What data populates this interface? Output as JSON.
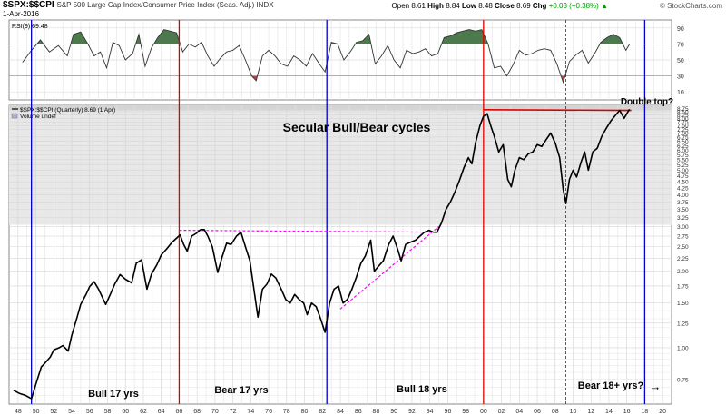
{
  "header": {
    "ticker": "$SPX:$$CPI",
    "description": "S&P 500 Large Cap Index/Consumer Price Index (Seas. Adj.) INDX",
    "date": "1-Apr-2016",
    "open_label": "Open",
    "open": "8.61",
    "high_label": "High",
    "high": "8.84",
    "low_label": "Low",
    "low": "8.48",
    "close_label": "Close",
    "close": "8.69",
    "chg_label": "Chg",
    "chg": "+0.03 (+0.38%)",
    "up_arrow": "▲",
    "brand": "© StockCharts.com"
  },
  "rsi_panel": {
    "legend": "RSI(9) 69.48",
    "ticks": [
      "90",
      "70",
      "50",
      "30",
      "10"
    ]
  },
  "price_panel": {
    "legend_line1": "$SPX:$$CPI (Quarterly) 8.69 (1 Apr)",
    "legend_line2": "Volume undef",
    "main_title": "Secular Bull/Bear cycles",
    "annotation_double_top": "Double top?"
  },
  "cycles": [
    {
      "label": "Bull 17 yrs",
      "start": 1949.5,
      "end": 1966,
      "color": "#0000cc"
    },
    {
      "label": "Bear 17 yrs",
      "start": 1966,
      "end": 1982.5,
      "color": "#dd0000"
    },
    {
      "label": "Bull 18 yrs",
      "start": 1982.5,
      "end": 2000,
      "color": "#0000cc"
    },
    {
      "label": "Bear 18+ yrs?",
      "start": 2000,
      "end": 2018,
      "color": "#dd0000"
    }
  ],
  "bear_arrow": "→",
  "chart_data": {
    "type": "line",
    "scale": "log",
    "ylim": [
      0.6,
      9.0
    ],
    "xlim": [
      1947,
      2021
    ],
    "x_ticks": [
      "48",
      "50",
      "52",
      "54",
      "56",
      "58",
      "60",
      "62",
      "64",
      "66",
      "68",
      "70",
      "72",
      "74",
      "76",
      "78",
      "80",
      "82",
      "84",
      "86",
      "88",
      "90",
      "92",
      "94",
      "96",
      "98",
      "00",
      "02",
      "04",
      "06",
      "08",
      "10",
      "12",
      "14",
      "16",
      "18",
      "20"
    ],
    "y_ticks": [
      "8.75",
      "8.50",
      "8.25",
      "8.00",
      "7.75",
      "7.50",
      "7.25",
      "7.00",
      "6.75",
      "6.50",
      "6.25",
      "6.00",
      "5.75",
      "5.50",
      "5.25",
      "5.00",
      "4.75",
      "4.50",
      "4.25",
      "4.00",
      "3.75",
      "3.50",
      "3.25",
      "3.00",
      "2.75",
      "2.50",
      "2.25",
      "2.00",
      "1.75",
      "1.50",
      "1.25",
      "1.00",
      "0.75"
    ],
    "series": [
      {
        "values": [
          [
            1947.5,
            0.68
          ],
          [
            1948.2,
            0.66
          ],
          [
            1948.8,
            0.65
          ],
          [
            1949.5,
            0.63
          ],
          [
            1950,
            0.72
          ],
          [
            1950.6,
            0.84
          ],
          [
            1951,
            0.87
          ],
          [
            1951.6,
            0.92
          ],
          [
            1952,
            0.98
          ],
          [
            1952.6,
            1.0
          ],
          [
            1953,
            1.02
          ],
          [
            1953.6,
            0.97
          ],
          [
            1954,
            1.12
          ],
          [
            1954.6,
            1.32
          ],
          [
            1955,
            1.48
          ],
          [
            1955.6,
            1.62
          ],
          [
            1956,
            1.74
          ],
          [
            1956.5,
            1.82
          ],
          [
            1957,
            1.7
          ],
          [
            1957.8,
            1.48
          ],
          [
            1958.3,
            1.62
          ],
          [
            1958.8,
            1.78
          ],
          [
            1959.4,
            1.94
          ],
          [
            1960,
            1.86
          ],
          [
            1960.7,
            1.8
          ],
          [
            1961.2,
            2.15
          ],
          [
            1961.8,
            2.22
          ],
          [
            1962.4,
            1.7
          ],
          [
            1962.9,
            1.95
          ],
          [
            1963.5,
            2.12
          ],
          [
            1964,
            2.32
          ],
          [
            1964.6,
            2.45
          ],
          [
            1965.2,
            2.6
          ],
          [
            1965.8,
            2.72
          ],
          [
            1966.1,
            2.78
          ],
          [
            1966.5,
            2.55
          ],
          [
            1966.9,
            2.4
          ],
          [
            1967.4,
            2.75
          ],
          [
            1967.9,
            2.82
          ],
          [
            1968.4,
            2.92
          ],
          [
            1968.8,
            2.92
          ],
          [
            1969.2,
            2.75
          ],
          [
            1969.7,
            2.5
          ],
          [
            1970.3,
            1.98
          ],
          [
            1970.8,
            2.28
          ],
          [
            1971.3,
            2.58
          ],
          [
            1971.8,
            2.55
          ],
          [
            1972.4,
            2.75
          ],
          [
            1972.9,
            2.85
          ],
          [
            1973.4,
            2.5
          ],
          [
            1973.9,
            2.2
          ],
          [
            1974.4,
            1.65
          ],
          [
            1974.8,
            1.32
          ],
          [
            1975.3,
            1.7
          ],
          [
            1975.8,
            1.78
          ],
          [
            1976.3,
            1.95
          ],
          [
            1976.8,
            1.88
          ],
          [
            1977.4,
            1.7
          ],
          [
            1977.9,
            1.55
          ],
          [
            1978.4,
            1.5
          ],
          [
            1978.9,
            1.62
          ],
          [
            1979.4,
            1.55
          ],
          [
            1979.9,
            1.5
          ],
          [
            1980.3,
            1.35
          ],
          [
            1980.8,
            1.5
          ],
          [
            1981.3,
            1.45
          ],
          [
            1981.8,
            1.3
          ],
          [
            1982.3,
            1.15
          ],
          [
            1982.8,
            1.5
          ],
          [
            1983.3,
            1.7
          ],
          [
            1983.8,
            1.75
          ],
          [
            1984.3,
            1.5
          ],
          [
            1984.8,
            1.55
          ],
          [
            1985.3,
            1.7
          ],
          [
            1985.8,
            1.9
          ],
          [
            1986.3,
            2.15
          ],
          [
            1986.8,
            2.3
          ],
          [
            1987.4,
            2.65
          ],
          [
            1987.8,
            2.0
          ],
          [
            1988.3,
            2.1
          ],
          [
            1988.8,
            2.2
          ],
          [
            1989.4,
            2.55
          ],
          [
            1989.9,
            2.75
          ],
          [
            1990.4,
            2.45
          ],
          [
            1990.8,
            2.2
          ],
          [
            1991.3,
            2.55
          ],
          [
            1991.8,
            2.6
          ],
          [
            1992.4,
            2.65
          ],
          [
            1992.9,
            2.75
          ],
          [
            1993.4,
            2.85
          ],
          [
            1993.9,
            2.9
          ],
          [
            1994.4,
            2.85
          ],
          [
            1994.8,
            2.85
          ],
          [
            1995.3,
            3.1
          ],
          [
            1995.8,
            3.5
          ],
          [
            1996.3,
            3.75
          ],
          [
            1996.8,
            4.1
          ],
          [
            1997.3,
            4.55
          ],
          [
            1997.8,
            5.1
          ],
          [
            1998.3,
            5.6
          ],
          [
            1998.7,
            5.3
          ],
          [
            1999.1,
            6.4
          ],
          [
            1999.6,
            7.5
          ],
          [
            2000,
            8.15
          ],
          [
            2000.4,
            8.35
          ],
          [
            2000.8,
            7.5
          ],
          [
            2001.2,
            6.8
          ],
          [
            2001.7,
            5.9
          ],
          [
            2002.2,
            6.3
          ],
          [
            2002.7,
            4.6
          ],
          [
            2003.1,
            4.3
          ],
          [
            2003.5,
            5.0
          ],
          [
            2004,
            5.6
          ],
          [
            2004.5,
            5.5
          ],
          [
            2005,
            5.8
          ],
          [
            2005.5,
            5.9
          ],
          [
            2006,
            6.3
          ],
          [
            2006.5,
            6.2
          ],
          [
            2007,
            6.6
          ],
          [
            2007.5,
            7.0
          ],
          [
            2008,
            6.4
          ],
          [
            2008.5,
            5.6
          ],
          [
            2008.9,
            4.2
          ],
          [
            2009.2,
            3.7
          ],
          [
            2009.6,
            4.6
          ],
          [
            2010,
            5.0
          ],
          [
            2010.4,
            4.7
          ],
          [
            2010.9,
            5.4
          ],
          [
            2011.3,
            5.9
          ],
          [
            2011.7,
            5.0
          ],
          [
            2012.2,
            5.9
          ],
          [
            2012.7,
            6.1
          ],
          [
            2013.2,
            6.8
          ],
          [
            2013.7,
            7.3
          ],
          [
            2014.2,
            7.8
          ],
          [
            2014.7,
            8.2
          ],
          [
            2015.2,
            8.6
          ],
          [
            2015.7,
            8.0
          ],
          [
            2016,
            8.35
          ],
          [
            2016.3,
            8.69
          ]
        ]
      }
    ],
    "resistance_line": {
      "x": [
        2000,
        2016.5
      ],
      "y": [
        8.65,
        8.6
      ]
    },
    "magenta_lines": [
      {
        "x": [
          1966,
          1995
        ],
        "y": [
          2.9,
          2.85
        ]
      },
      {
        "x": [
          1984,
          1995
        ],
        "y": [
          1.42,
          3.0
        ]
      }
    ],
    "rsi": {
      "ylim": [
        0,
        100
      ],
      "values": [
        [
          1948.5,
          47
        ],
        [
          1949.5,
          62
        ],
        [
          1950.5,
          75
        ],
        [
          1951.5,
          60
        ],
        [
          1952.5,
          68
        ],
        [
          1953.5,
          55
        ],
        [
          1954.2,
          82
        ],
        [
          1955,
          85
        ],
        [
          1955.8,
          70
        ],
        [
          1956.5,
          55
        ],
        [
          1957.2,
          60
        ],
        [
          1957.9,
          40
        ],
        [
          1958.6,
          72
        ],
        [
          1959.3,
          68
        ],
        [
          1960,
          50
        ],
        [
          1960.8,
          58
        ],
        [
          1961.5,
          82
        ],
        [
          1962.2,
          42
        ],
        [
          1962.9,
          65
        ],
        [
          1963.6,
          78
        ],
        [
          1964.3,
          88
        ],
        [
          1965,
          86
        ],
        [
          1965.7,
          84
        ],
        [
          1966.4,
          60
        ],
        [
          1967.1,
          70
        ],
        [
          1967.8,
          66
        ],
        [
          1968.5,
          72
        ],
        [
          1969.2,
          55
        ],
        [
          1969.9,
          42
        ],
        [
          1970.6,
          52
        ],
        [
          1971.3,
          60
        ],
        [
          1972,
          62
        ],
        [
          1972.7,
          68
        ],
        [
          1973.4,
          50
        ],
        [
          1974.1,
          30
        ],
        [
          1974.6,
          24
        ],
        [
          1975.3,
          55
        ],
        [
          1976,
          62
        ],
        [
          1976.7,
          55
        ],
        [
          1977.4,
          45
        ],
        [
          1978.1,
          42
        ],
        [
          1978.8,
          55
        ],
        [
          1979.5,
          50
        ],
        [
          1980.2,
          42
        ],
        [
          1980.9,
          58
        ],
        [
          1981.6,
          46
        ],
        [
          1982.3,
          35
        ],
        [
          1983,
          72
        ],
        [
          1983.7,
          70
        ],
        [
          1984.4,
          50
        ],
        [
          1985.1,
          60
        ],
        [
          1985.8,
          72
        ],
        [
          1986.5,
          74
        ],
        [
          1987.2,
          82
        ],
        [
          1987.9,
          45
        ],
        [
          1988.6,
          55
        ],
        [
          1989.3,
          68
        ],
        [
          1990,
          50
        ],
        [
          1990.7,
          40
        ],
        [
          1991.4,
          62
        ],
        [
          1992.1,
          58
        ],
        [
          1992.8,
          60
        ],
        [
          1993.5,
          64
        ],
        [
          1994.2,
          55
        ],
        [
          1994.9,
          58
        ],
        [
          1995.6,
          78
        ],
        [
          1996.3,
          80
        ],
        [
          1997,
          84
        ],
        [
          1997.7,
          86
        ],
        [
          1998.4,
          88
        ],
        [
          1999.1,
          86
        ],
        [
          1999.8,
          88
        ],
        [
          2000.5,
          70
        ],
        [
          2001.2,
          40
        ],
        [
          2001.9,
          42
        ],
        [
          2002.6,
          30
        ],
        [
          2003.3,
          44
        ],
        [
          2004,
          62
        ],
        [
          2004.7,
          56
        ],
        [
          2005.4,
          58
        ],
        [
          2006.1,
          62
        ],
        [
          2006.8,
          64
        ],
        [
          2007.5,
          62
        ],
        [
          2008.2,
          45
        ],
        [
          2008.9,
          22
        ],
        [
          2009.6,
          48
        ],
        [
          2010.3,
          56
        ],
        [
          2011,
          62
        ],
        [
          2011.7,
          46
        ],
        [
          2012.4,
          58
        ],
        [
          2013.1,
          72
        ],
        [
          2013.8,
          78
        ],
        [
          2014.5,
          82
        ],
        [
          2015.2,
          78
        ],
        [
          2015.9,
          62
        ],
        [
          2016.3,
          69.48
        ]
      ]
    }
  }
}
